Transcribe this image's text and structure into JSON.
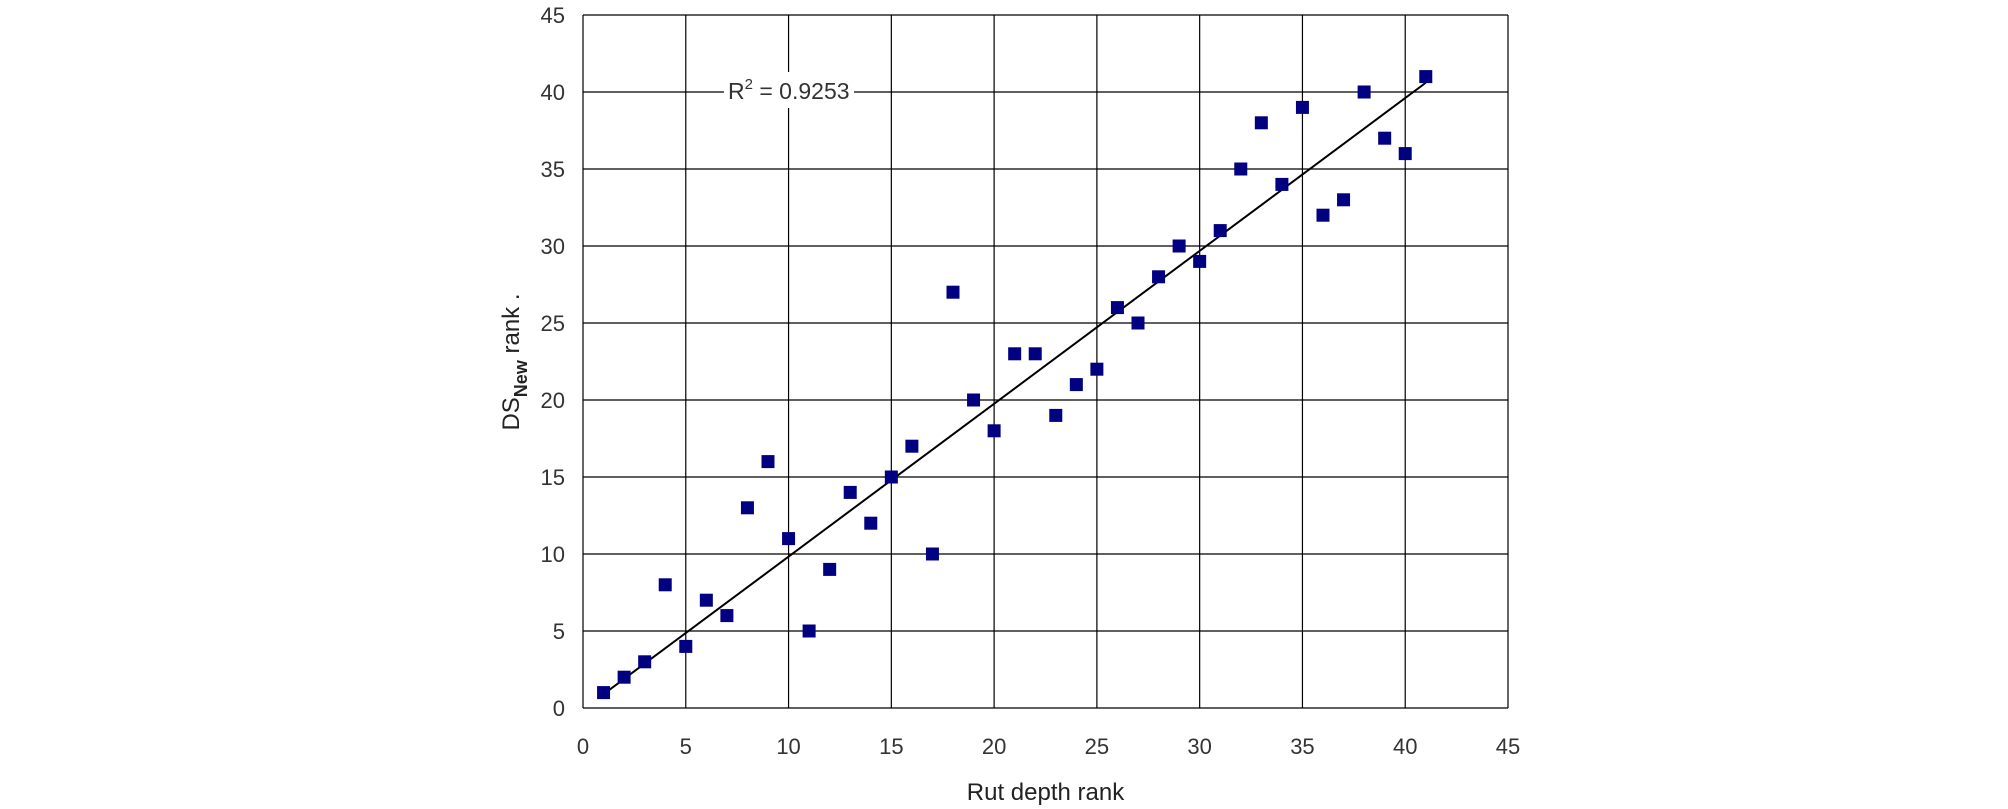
{
  "chart_data": {
    "type": "scatter",
    "xlabel": "Rut depth rank",
    "ylabel": {
      "main": "DS",
      "subscript": "New",
      "suffix": " rank ."
    },
    "xlim": [
      0,
      45
    ],
    "ylim": [
      0,
      45
    ],
    "xticks": [
      0,
      5,
      10,
      15,
      20,
      25,
      30,
      35,
      40,
      45
    ],
    "yticks": [
      0,
      5,
      10,
      15,
      20,
      25,
      30,
      35,
      40,
      45
    ],
    "grid": true,
    "marker_color": "#000080",
    "annotation": {
      "base": "R",
      "sup": "2",
      "rest": " = 0.9253"
    },
    "trendline": {
      "x": [
        1,
        41
      ],
      "y": [
        0.9,
        40.6
      ]
    },
    "points": [
      [
        1,
        1
      ],
      [
        2,
        2
      ],
      [
        3,
        3
      ],
      [
        4,
        8
      ],
      [
        5,
        4
      ],
      [
        6,
        7
      ],
      [
        7,
        6
      ],
      [
        8,
        13
      ],
      [
        9,
        16
      ],
      [
        10,
        11
      ],
      [
        11,
        5
      ],
      [
        12,
        9
      ],
      [
        13,
        14
      ],
      [
        14,
        12
      ],
      [
        15,
        15
      ],
      [
        16,
        17
      ],
      [
        17,
        10
      ],
      [
        18,
        27
      ],
      [
        19,
        20
      ],
      [
        20,
        18
      ],
      [
        21,
        23
      ],
      [
        22,
        23
      ],
      [
        23,
        19
      ],
      [
        24,
        21
      ],
      [
        25,
        22
      ],
      [
        26,
        26
      ],
      [
        27,
        25
      ],
      [
        28,
        28
      ],
      [
        29,
        30
      ],
      [
        30,
        29
      ],
      [
        31,
        31
      ],
      [
        32,
        35
      ],
      [
        33,
        38
      ],
      [
        34,
        34
      ],
      [
        35,
        39
      ],
      [
        36,
        32
      ],
      [
        37,
        33
      ],
      [
        38,
        40
      ],
      [
        39,
        37
      ],
      [
        40,
        36
      ],
      [
        41,
        41
      ]
    ]
  }
}
